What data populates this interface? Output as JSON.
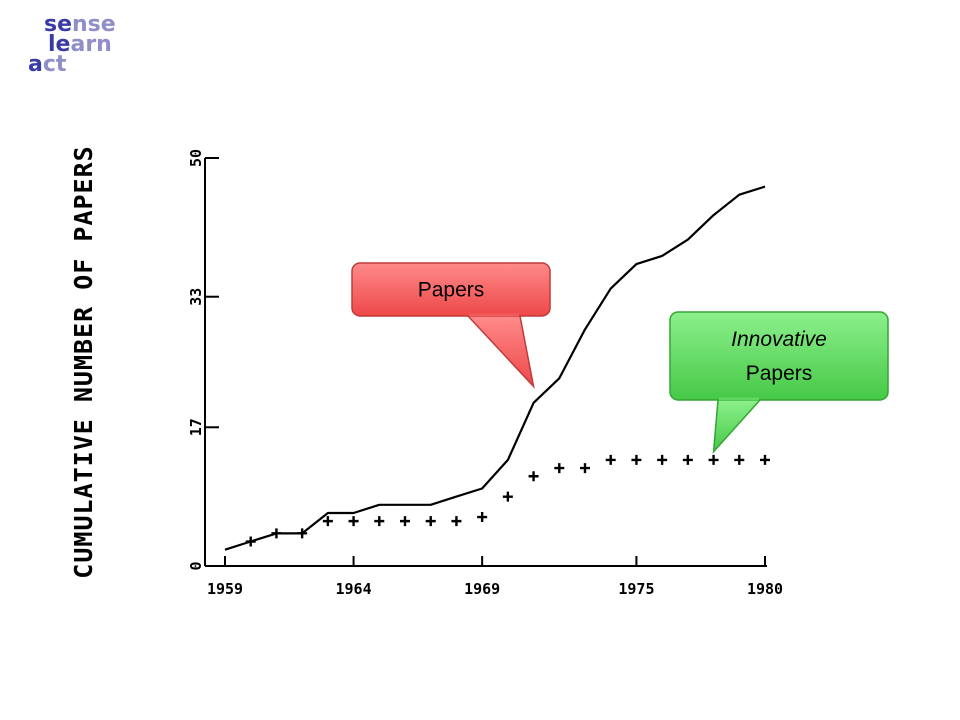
{
  "logo": {
    "lines": [
      {
        "dark": "se",
        "light": "nse"
      },
      {
        "dark": "le",
        "light": "arn"
      },
      {
        "dark": "a",
        "light": "ct"
      }
    ]
  },
  "chart_data": {
    "type": "line",
    "title": "",
    "xlabel": "",
    "ylabel": "CUMULATIVE NUMBER OF PAPERS",
    "xlim": [
      1959,
      1980
    ],
    "ylim": [
      0,
      50
    ],
    "x_ticks": [
      1959,
      1964,
      1969,
      1975,
      1980
    ],
    "x_tick_labels": [
      "1959",
      "1964",
      "1969",
      "1975",
      "1980"
    ],
    "y_ticks": [
      0,
      17,
      33,
      50
    ],
    "y_tick_labels": [
      "0",
      "17",
      "33",
      "50"
    ],
    "grid": false,
    "series": [
      {
        "marker": "line",
        "color": "#000000",
        "points": [
          [
            1959,
            2
          ],
          [
            1960,
            3
          ],
          [
            1961,
            4
          ],
          [
            1962,
            4
          ],
          [
            1963,
            6.5
          ],
          [
            1964,
            6.5
          ],
          [
            1965,
            7.5
          ],
          [
            1966,
            7.5
          ],
          [
            1967,
            7.5
          ],
          [
            1968,
            8.5
          ],
          [
            1969,
            9.5
          ],
          [
            1970,
            13
          ],
          [
            1971,
            20
          ],
          [
            1972,
            23
          ],
          [
            1973,
            29
          ],
          [
            1974,
            34
          ],
          [
            1975,
            37
          ],
          [
            1976,
            38
          ],
          [
            1977,
            40
          ],
          [
            1978,
            43
          ],
          [
            1979,
            45.5
          ],
          [
            1980,
            46.5
          ]
        ]
      },
      {
        "marker": "plus",
        "color": "#000000",
        "points": [
          [
            1960,
            3
          ],
          [
            1961,
            4
          ],
          [
            1962,
            4
          ],
          [
            1963,
            5.5
          ],
          [
            1964,
            5.5
          ],
          [
            1965,
            5.5
          ],
          [
            1966,
            5.5
          ],
          [
            1967,
            5.5
          ],
          [
            1968,
            5.5
          ],
          [
            1969,
            6
          ],
          [
            1970,
            8.5
          ],
          [
            1971,
            11
          ],
          [
            1972,
            12
          ],
          [
            1973,
            12
          ],
          [
            1974,
            13
          ],
          [
            1975,
            13
          ],
          [
            1976,
            13
          ],
          [
            1977,
            13
          ],
          [
            1978,
            13
          ],
          [
            1979,
            13
          ],
          [
            1980,
            13
          ]
        ]
      }
    ],
    "annotations": [
      {
        "lines": [
          "Papers"
        ],
        "italic": [
          false
        ],
        "color": "#f25a5a",
        "points_to": [
          1971,
          22
        ]
      },
      {
        "lines": [
          "Innovative",
          "Papers"
        ],
        "italic": [
          true,
          false
        ],
        "color": "#5fd65f",
        "points_to": [
          1978,
          14
        ]
      }
    ]
  }
}
